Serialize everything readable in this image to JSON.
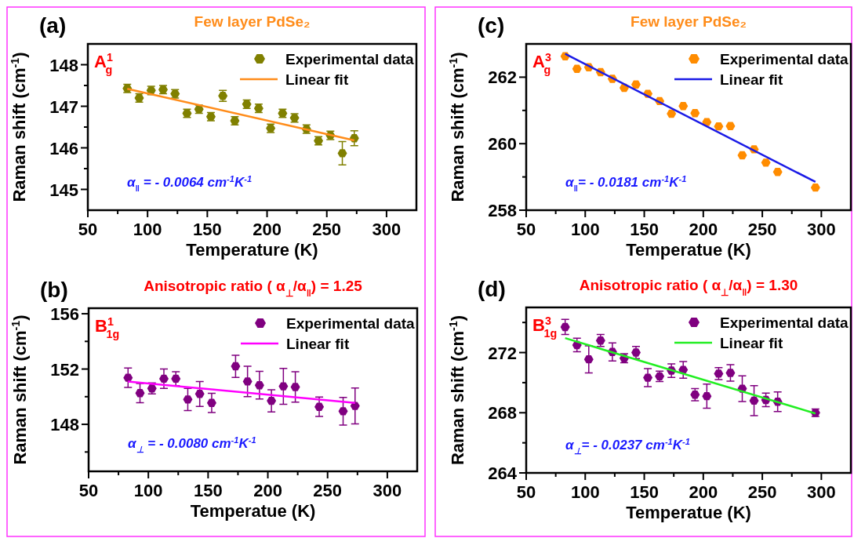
{
  "chart_data": [
    {
      "type": "scatter",
      "title": "Few layer PdSe₂",
      "xlabel": "Temperature (K)",
      "ylabel": "Raman shift (cm$^{-1}$)",
      "annotations": [
        "(a)",
        "A$^{1}$$_{g}$",
        "α$_{‖}$ = - 0.0064 cm$^{-1}$K$^{-1}$"
      ],
      "legend": "top right",
      "xlim": [
        50,
        325
      ],
      "xticks": [
        50,
        {
          "value": 75,
          "label": null
        },
        100,
        {
          "value": 125,
          "label": null
        },
        150,
        {
          "value": 175,
          "label": null
        },
        200,
        {
          "value": 225,
          "label": null
        },
        250,
        {
          "value": 275,
          "label": null
        },
        300
      ],
      "ylim": [
        144.5,
        148.5
      ],
      "yticks": [
        145,
        {
          "value": 145.5,
          "label": null
        },
        146,
        {
          "value": 146.5,
          "label": null
        },
        147,
        {
          "value": 147.5,
          "label": null
        },
        148
      ],
      "series": [
        {
          "name": "Experimental data",
          "color": "#808000",
          "x": [
            83,
            93,
            103,
            113,
            123,
            133,
            143,
            153,
            163,
            173,
            183,
            193,
            203,
            213,
            223,
            233,
            243,
            253,
            263,
            273
          ],
          "values": [
            147.43,
            147.2,
            147.38,
            147.4,
            147.3,
            146.83,
            146.93,
            146.75,
            147.25,
            146.65,
            147.05,
            146.95,
            146.47,
            146.83,
            146.72,
            146.45,
            146.17,
            146.3,
            145.87,
            146.23
          ],
          "errors": [
            0.1,
            0.1,
            0.1,
            0.1,
            0.1,
            0.1,
            0.1,
            0.1,
            0.13,
            0.1,
            0.1,
            0.1,
            0.1,
            0.1,
            0.1,
            0.1,
            0.1,
            0.1,
            0.28,
            0.18
          ]
        },
        {
          "name": "Linear fit",
          "type": "line",
          "color": "#ff8c1a",
          "x": [
            83,
            273
          ],
          "values": [
            147.42,
            146.18
          ]
        }
      ]
    },
    {
      "type": "scatter",
      "title": "Few layer PdSe₂",
      "xlabel": "Temperatue (K)",
      "ylabel": "Raman shift (cm$^{-1}$)",
      "annotations": [
        "(c)",
        "A$^{3}$$_{g}$",
        "α$_{‖}$= - 0.0181 cm$^{-1}$K$^{-1}$"
      ],
      "legend": "top right",
      "xlim": [
        50,
        325
      ],
      "xticks": [
        50,
        {
          "value": 75,
          "label": null
        },
        100,
        {
          "value": 125,
          "label": null
        },
        150,
        {
          "value": 175,
          "label": null
        },
        200,
        {
          "value": 225,
          "label": null
        },
        250,
        {
          "value": 275,
          "label": null
        },
        300
      ],
      "ylim": [
        258,
        263
      ],
      "yticks": [
        258,
        {
          "value": 259,
          "label": null
        },
        260,
        {
          "value": 261,
          "label": null
        },
        262
      ],
      "series": [
        {
          "name": "Experimental data",
          "color": "#ff8c00",
          "x": [
            83,
            93,
            103,
            113,
            123,
            133,
            143,
            153,
            163,
            173,
            183,
            193,
            203,
            213,
            223,
            233,
            243,
            253,
            263,
            295
          ],
          "values": [
            262.63,
            262.25,
            262.3,
            262.15,
            261.95,
            261.68,
            261.78,
            261.5,
            261.28,
            260.9,
            261.13,
            260.92,
            260.65,
            260.52,
            260.53,
            259.65,
            259.83,
            259.43,
            259.15,
            258.68
          ]
        },
        {
          "name": "Linear fit",
          "type": "line",
          "color": "#1a1ae6",
          "x": [
            83,
            295
          ],
          "values": [
            262.7,
            258.85
          ]
        }
      ]
    },
    {
      "type": "scatter",
      "title": "Anisotropic ratio ( α$_{⊥}$/α$_{‖}$) = 1.25",
      "xlabel": "Temperatue (K)",
      "ylabel": "Raman shift (cm$^{-1}$)",
      "annotations": [
        "(b)",
        "B$^{1}$$_{1g}$",
        "α$_{⊥}$ = - 0.0080 cm$^{-1}$K$^{-1}$"
      ],
      "legend": "top right",
      "xlim": [
        50,
        325
      ],
      "xticks": [
        50,
        {
          "value": 75,
          "label": null
        },
        100,
        {
          "value": 125,
          "label": null
        },
        150,
        {
          "value": 175,
          "label": null
        },
        200,
        {
          "value": 225,
          "label": null
        },
        250,
        {
          "value": 275,
          "label": null
        },
        300
      ],
      "ylim": [
        144.6,
        156.4
      ],
      "yticks": [
        {
          "value": 146,
          "label": null
        },
        148,
        {
          "value": 150,
          "label": null
        },
        152,
        {
          "value": 154,
          "label": null
        },
        156
      ],
      "series": [
        {
          "name": "Experimental data",
          "color": "#800080",
          "x": [
            83,
            93,
            103,
            113,
            123,
            133,
            143,
            153,
            173,
            183,
            193,
            203,
            213,
            223,
            243,
            263,
            273
          ],
          "values": [
            151.37,
            150.26,
            150.6,
            151.3,
            151.3,
            149.8,
            150.2,
            149.55,
            152.2,
            151.1,
            150.83,
            149.7,
            150.75,
            150.7,
            149.27,
            148.95,
            149.33
          ],
          "errors": [
            0.7,
            0.7,
            0.4,
            0.7,
            0.5,
            0.8,
            0.9,
            0.7,
            0.8,
            1.1,
            1.0,
            0.8,
            1.3,
            1.1,
            0.7,
            1.0,
            1.3
          ]
        },
        {
          "name": "Linear fit",
          "type": "line",
          "color": "#ff00ff",
          "x": [
            83,
            273
          ],
          "values": [
            151.1,
            149.55
          ]
        }
      ]
    },
    {
      "type": "scatter",
      "title": "Anisotropic ratio ( α$_{⊥}$/α$_{‖}$) = 1.30",
      "xlabel": "Temperatue (K)",
      "ylabel": "Raman shift (cm$^{-1}$)",
      "annotations": [
        "(d)",
        "B$^{3}$$_{1g}$",
        "α$_{⊥}$= - 0.0237 cm$^{-1}$K$^{-1}$"
      ],
      "legend": "top right",
      "xlim": [
        50,
        325
      ],
      "xticks": [
        50,
        {
          "value": 75,
          "label": null
        },
        100,
        {
          "value": 125,
          "label": null
        },
        150,
        {
          "value": 175,
          "label": null
        },
        200,
        {
          "value": 225,
          "label": null
        },
        250,
        {
          "value": 275,
          "label": null
        },
        300
      ],
      "ylim": [
        264,
        275
      ],
      "yticks": [
        264,
        {
          "value": 266,
          "label": null
        },
        268,
        {
          "value": 270,
          "label": null
        },
        272,
        {
          "value": 274,
          "label": null
        }
      ],
      "series": [
        {
          "name": "Experimental data",
          "color": "#800080",
          "x": [
            83,
            93,
            103,
            113,
            123,
            133,
            143,
            153,
            163,
            173,
            183,
            193,
            203,
            213,
            223,
            233,
            243,
            253,
            263,
            295
          ],
          "values": [
            273.7,
            272.5,
            271.55,
            272.8,
            272.04,
            271.62,
            272.0,
            270.33,
            270.42,
            270.8,
            270.85,
            269.2,
            269.1,
            270.6,
            270.65,
            269.6,
            268.8,
            268.85,
            268.73,
            268.0
          ],
          "errors": [
            0.5,
            0.45,
            0.9,
            0.4,
            0.6,
            0.3,
            0.4,
            0.6,
            0.35,
            0.45,
            0.55,
            0.4,
            0.8,
            0.4,
            0.55,
            0.85,
            1.0,
            0.45,
            0.65,
            0.25
          ]
        },
        {
          "name": "Linear fit",
          "type": "line",
          "color": "#22ee22",
          "x": [
            83,
            295
          ],
          "values": [
            272.96,
            267.95
          ]
        }
      ]
    }
  ]
}
